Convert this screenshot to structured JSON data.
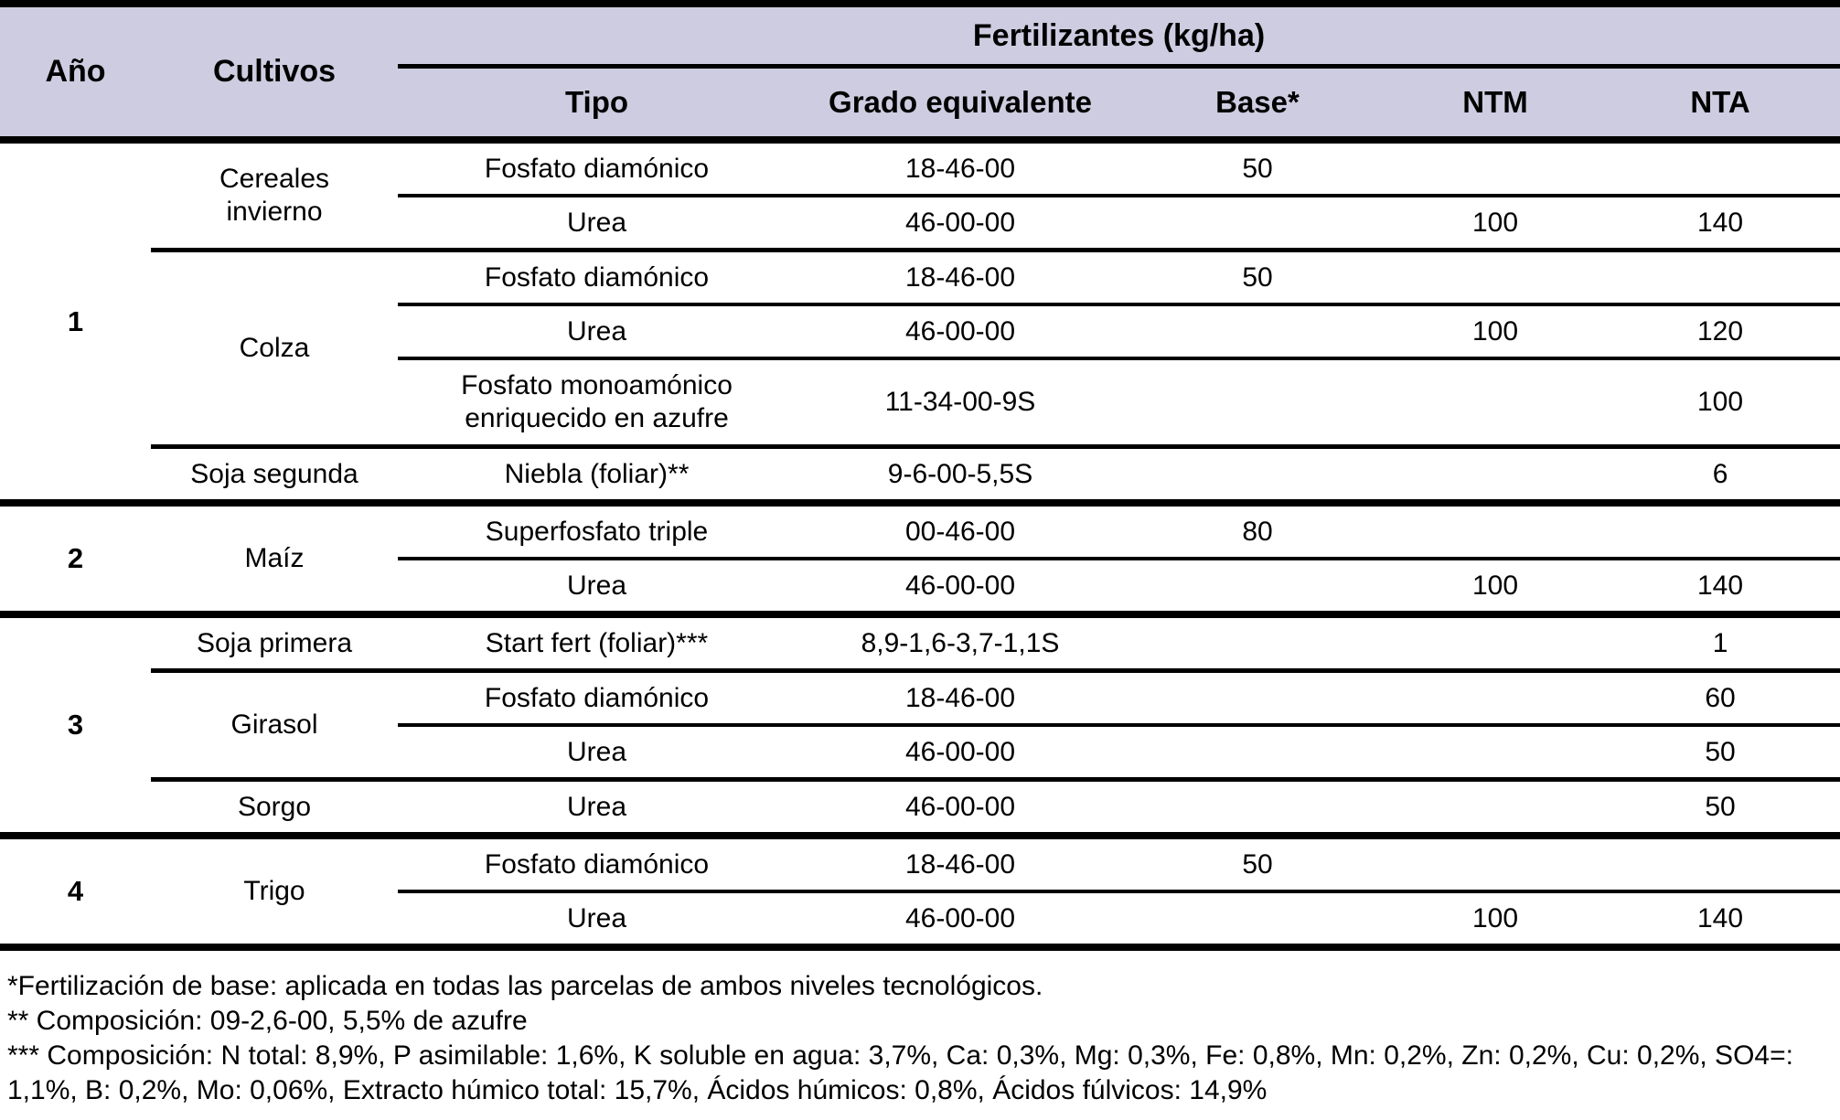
{
  "colors": {
    "header_bg": "#cecce0",
    "border": "#000000",
    "text": "#000000",
    "body_bg": "#ffffff"
  },
  "table": {
    "columns": {
      "ano": "Año",
      "cultivos": "Cultivos",
      "fertilizantes_group": "Fertilizantes (kg/ha)",
      "tipo": "Tipo",
      "grado": "Grado equivalente",
      "base": "Base*",
      "ntm": "NTM",
      "nta": "NTA"
    },
    "years": [
      {
        "label": "1"
      },
      {
        "label": "2"
      },
      {
        "label": "3"
      },
      {
        "label": "4"
      }
    ],
    "crops": [
      {
        "label": "Cereales invierno"
      },
      {
        "label": "Colza"
      },
      {
        "label": "Soja segunda"
      },
      {
        "label": "Maíz"
      },
      {
        "label": "Soja primera"
      },
      {
        "label": "Girasol"
      },
      {
        "label": "Sorgo"
      },
      {
        "label": "Trigo"
      }
    ],
    "rows": [
      {
        "tipo": "Fosfato diamónico",
        "grado": "18-46-00",
        "base": "50",
        "ntm": "",
        "nta": ""
      },
      {
        "tipo": "Urea",
        "grado": "46-00-00",
        "base": "",
        "ntm": "100",
        "nta": "140"
      },
      {
        "tipo": "Fosfato diamónico",
        "grado": "18-46-00",
        "base": "50",
        "ntm": "",
        "nta": ""
      },
      {
        "tipo": "Urea",
        "grado": "46-00-00",
        "base": "",
        "ntm": "100",
        "nta": "120"
      },
      {
        "tipo": "Fosfato monoamónico enriquecido en azufre",
        "grado": "11-34-00-9S",
        "base": "",
        "ntm": "",
        "nta": "100"
      },
      {
        "tipo": "Niebla (foliar)**",
        "grado": "9-6-00-5,5S",
        "base": "",
        "ntm": "",
        "nta": "6"
      },
      {
        "tipo": "Superfosfato triple",
        "grado": "00-46-00",
        "base": "80",
        "ntm": "",
        "nta": ""
      },
      {
        "tipo": "Urea",
        "grado": "46-00-00",
        "base": "",
        "ntm": "100",
        "nta": "140"
      },
      {
        "tipo": "Start fert (foliar)***",
        "grado": "8,9-1,6-3,7-1,1S",
        "base": "",
        "ntm": "",
        "nta": "1"
      },
      {
        "tipo": "Fosfato diamónico",
        "grado": "18-46-00",
        "base": "",
        "ntm": "",
        "nta": "60"
      },
      {
        "tipo": "Urea",
        "grado": "46-00-00",
        "base": "",
        "ntm": "",
        "nta": "50"
      },
      {
        "tipo": "Urea",
        "grado": "46-00-00",
        "base": "",
        "ntm": "",
        "nta": "50"
      },
      {
        "tipo": "Fosfato diamónico",
        "grado": "18-46-00",
        "base": "50",
        "ntm": "",
        "nta": ""
      },
      {
        "tipo": "Urea",
        "grado": "46-00-00",
        "base": "",
        "ntm": "100",
        "nta": "140"
      }
    ]
  },
  "footnotes": {
    "base": "*Fertilización de base: aplicada en todas las parcelas de ambos niveles tecnológicos.",
    "composicion_niebla": "** Composición: 09-2,6-00, 5,5% de azufre",
    "composicion_startfert": "*** Composición: N total: 8,9%, P asimilable: 1,6%, K soluble en agua: 3,7%, Ca: 0,3%, Mg: 0,3%, Fe: 0,8%, Mn: 0,2%, Zn: 0,2%, Cu: 0,2%, SO4=: 1,1%, B: 0,2%, Mo: 0,06%, Extracto húmico total: 15,7%, Ácidos húmicos: 0,8%, Ácidos fúlvicos: 14,9%"
  }
}
